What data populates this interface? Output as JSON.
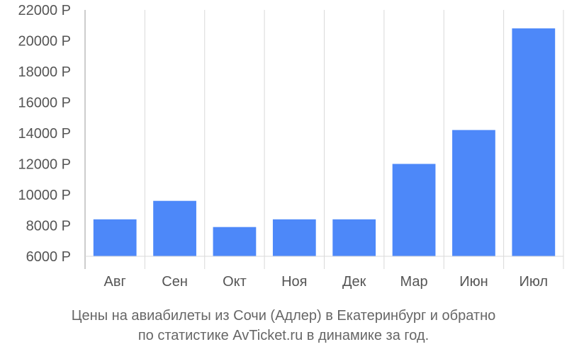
{
  "chart_data": {
    "type": "bar",
    "categories": [
      "Авг",
      "Сен",
      "Окт",
      "Ноя",
      "Дек",
      "Мар",
      "Июн",
      "Июл"
    ],
    "values": [
      8400,
      9600,
      7900,
      8400,
      8400,
      12000,
      14200,
      20800
    ],
    "ylim": [
      6000,
      22000
    ],
    "yticks": [
      6000,
      8000,
      10000,
      12000,
      14000,
      16000,
      18000,
      20000,
      22000
    ],
    "ytick_suffix": " Р",
    "grid": "vertical",
    "bar_color": "#4d88f9",
    "grid_color": "#d9d9d9",
    "axis_color": "#999999",
    "text_color": "#555555"
  },
  "caption": {
    "line1": "Цены на авиабилеты из Сочи (Адлер) в Екатеринбург и обратно",
    "line2": "по статистике AvTicket.ru в динамике за год."
  }
}
